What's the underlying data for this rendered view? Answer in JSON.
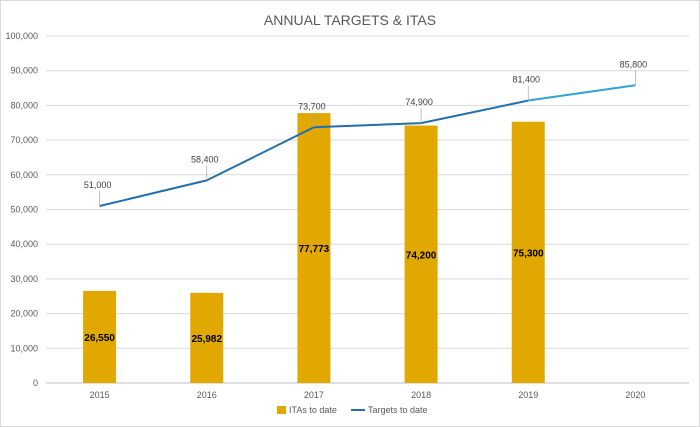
{
  "chart_data": {
    "type": "bar+line",
    "title": "ANNUAL TARGETS & ITAS",
    "categories": [
      "2015",
      "2016",
      "2017",
      "2018",
      "2019",
      "2020"
    ],
    "ylim": [
      0,
      100000
    ],
    "y_ticks": [
      "0",
      "10,000",
      "20,000",
      "30,000",
      "40,000",
      "50,000",
      "60,000",
      "70,000",
      "80,000",
      "90,000",
      "100,000"
    ],
    "y_tick_values": [
      0,
      10000,
      20000,
      30000,
      40000,
      50000,
      60000,
      70000,
      80000,
      90000,
      100000
    ],
    "grid": true,
    "legend_position": "bottom",
    "series": [
      {
        "name": "ITAs to date",
        "kind": "bar",
        "color": "#E0A800",
        "values": [
          26550,
          25982,
          77773,
          74200,
          75300,
          null
        ],
        "labels": [
          "26,550",
          "25,982",
          "77,773",
          "74,200",
          "75,300",
          ""
        ]
      },
      {
        "name": "Targets to date",
        "kind": "line",
        "color": "#1F6FB2",
        "projection_color": "#2EA3DD",
        "values": [
          51000,
          58400,
          73700,
          74900,
          81400,
          85800
        ],
        "labels": [
          "51,000",
          "58,400",
          "73,700",
          "74,900",
          "81,400",
          "85,800"
        ]
      }
    ]
  }
}
